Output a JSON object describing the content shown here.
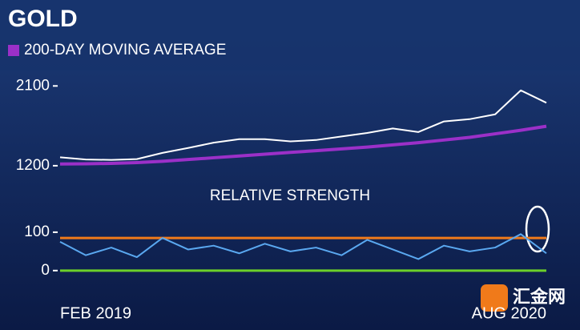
{
  "title": "GOLD",
  "watermark": "汇金网",
  "chart_data": [
    {
      "type": "line",
      "categories": [
        "FEB 2019",
        null,
        null,
        null,
        null,
        null,
        null,
        null,
        null,
        null,
        null,
        null,
        null,
        null,
        null,
        null,
        null,
        null,
        null,
        "AUG 2020"
      ],
      "series": [
        {
          "color": "#ffffff",
          "values": [
            1295,
            1270,
            1266,
            1275,
            1345,
            1400,
            1460,
            1500,
            1500,
            1475,
            1490,
            1530,
            1570,
            1620,
            1580,
            1700,
            1725,
            1780,
            2050,
            1910
          ]
        },
        {
          "name": "200-DAY MOVING AVERAGE",
          "color": "#9b30c8",
          "values": [
            1219,
            1222,
            1226,
            1235,
            1250,
            1270,
            1290,
            1310,
            1330,
            1350,
            1370,
            1390,
            1410,
            1435,
            1460,
            1490,
            1520,
            1560,
            1600,
            1645
          ]
        }
      ],
      "ylim": [
        1172,
        2166
      ],
      "yticks": [
        1200,
        2100
      ]
    },
    {
      "type": "line",
      "title": "RELATIVE STRENGTH",
      "categories": [
        "FEB 2019",
        null,
        null,
        null,
        null,
        null,
        null,
        null,
        null,
        null,
        null,
        null,
        null,
        null,
        null,
        null,
        null,
        null,
        null,
        "AUG 2020"
      ],
      "series": [
        {
          "color": "#5aa8f0",
          "values": [
            75,
            40,
            60,
            35,
            85,
            55,
            65,
            45,
            70,
            50,
            60,
            40,
            80,
            55,
            30,
            65,
            50,
            60,
            95,
            45
          ]
        }
      ],
      "reference_lines": [
        {
          "value": 85,
          "color": "#f07a1a"
        },
        {
          "value": 0,
          "color": "#6cd02a"
        }
      ],
      "ylim": [
        -15,
        152
      ],
      "yticks": [
        0,
        100
      ]
    }
  ]
}
